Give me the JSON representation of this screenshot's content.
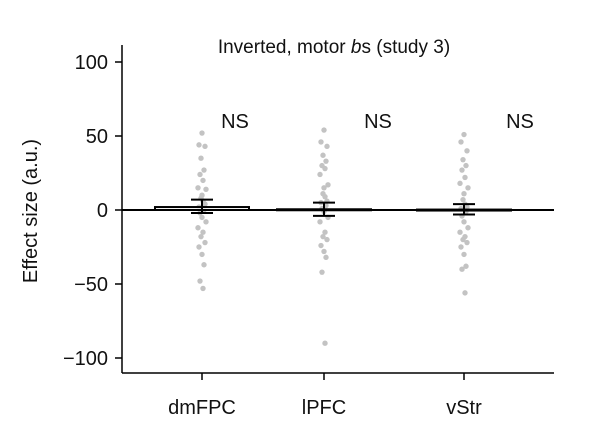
{
  "chart_data": {
    "type": "bar",
    "title_prefix": "Inverted, motor ",
    "title_italic": "b",
    "title_suffix": "s (study 3)",
    "ylabel": "Effect size (a.u.)",
    "ylim": [
      -110,
      110
    ],
    "yticks": [
      100,
      50,
      0,
      -50,
      -100
    ],
    "ytick_labels": [
      "100",
      "50",
      "0",
      "−50",
      "−100"
    ],
    "categories": [
      "dmFPC",
      "lPFC",
      "vStr"
    ],
    "values": [
      2,
      0.5,
      0.3
    ],
    "errors": [
      {
        "low": -2,
        "high": 7
      },
      {
        "low": -4,
        "high": 5
      },
      {
        "low": -3,
        "high": 4
      }
    ],
    "significance": [
      "NS",
      "NS",
      "NS"
    ],
    "points": [
      [
        52,
        44,
        43,
        35,
        27,
        24,
        20,
        15,
        14,
        10,
        8,
        6,
        4,
        2,
        0,
        -2,
        -5,
        -8,
        -12,
        -15,
        -18,
        -22,
        -25,
        -30,
        -37,
        -48,
        -53
      ],
      [
        54,
        46,
        43,
        37,
        33,
        30,
        28,
        24,
        17,
        15,
        11,
        9,
        6,
        5,
        3,
        1,
        -1,
        -5,
        -8,
        -15,
        -18,
        -20,
        -24,
        -28,
        -32,
        -42,
        -90
      ],
      [
        51,
        46,
        40,
        34,
        30,
        27,
        22,
        18,
        15,
        11,
        7,
        4,
        2,
        1,
        -1,
        -4,
        -8,
        -12,
        -15,
        -18,
        -20,
        -22,
        -25,
        -30,
        -38,
        -40,
        -56
      ]
    ],
    "point_color": "#c3c3c3",
    "bar_color": "#ffffff",
    "line_color": "#000000",
    "grid": false
  }
}
